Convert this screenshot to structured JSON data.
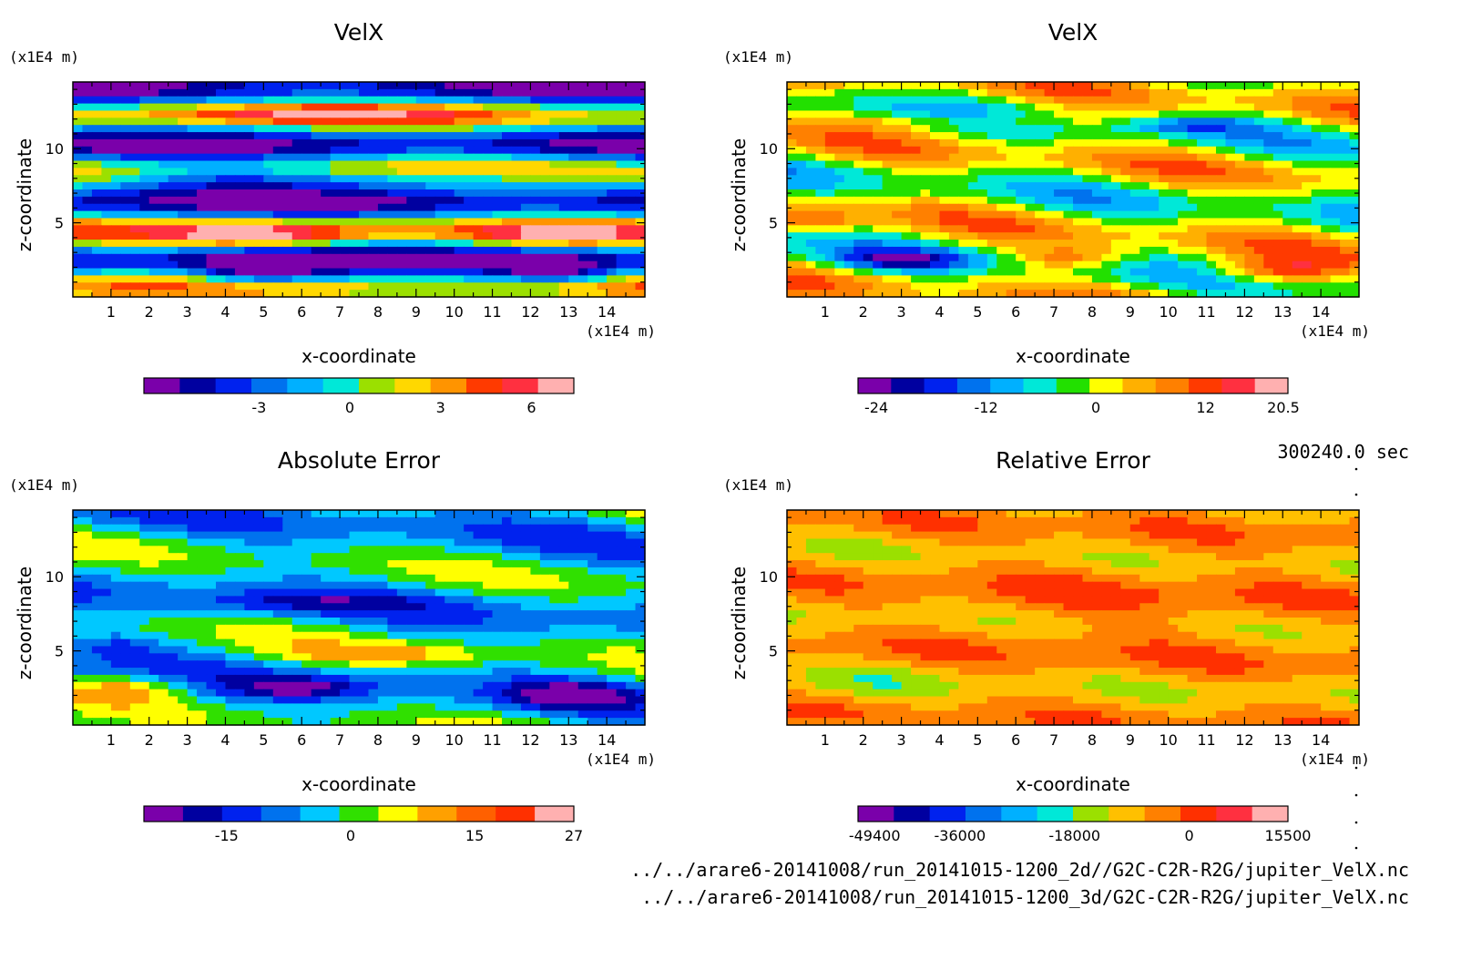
{
  "footer": {
    "time": "300240.0 sec",
    "file1": "../../arare6-20141008/run_20141015-1200_2d//G2C-C2R-R2G/jupiter_VelX.nc",
    "file2": "../../arare6-20141008/run_20141015-1200_3d/G2C-C2R-R2G/jupiter_VelX.nc"
  },
  "chart_data": [
    {
      "type": "heatmap",
      "title": "VelX",
      "xlabel": "x-coordinate",
      "ylabel": "z-coordinate",
      "x_unit": "(x1E4 m)",
      "z_unit": "(x1E4 m)",
      "xlim": [
        0,
        15
      ],
      "ylim": [
        0,
        14.5
      ],
      "x_ticks": [
        "1",
        "2",
        "3",
        "4",
        "5",
        "6",
        "7",
        "8",
        "9",
        "10",
        "11",
        "12",
        "13",
        "14"
      ],
      "y_ticks": [
        "5",
        "10"
      ],
      "colorbar": {
        "labels": [
          "-3",
          "0",
          "3",
          "6"
        ],
        "label_values": [
          -3,
          0,
          3,
          6
        ],
        "range": [
          -6.8,
          7.4
        ]
      },
      "colors": [
        "#7a00aa",
        "#0000a0",
        "#0022ee",
        "#0072ee",
        "#00b0ff",
        "#00e8d8",
        "#9be000",
        "#ffd800",
        "#ff9400",
        "#ff3a00",
        "#ff3040",
        "#ffb0b0"
      ]
    },
    {
      "type": "heatmap",
      "title": "VelX",
      "xlabel": "x-coordinate",
      "ylabel": "z-coordinate",
      "x_unit": "(x1E4 m)",
      "z_unit": "(x1E4 m)",
      "xlim": [
        0,
        15
      ],
      "ylim": [
        0,
        14.5
      ],
      "x_ticks": [
        "1",
        "2",
        "3",
        "4",
        "5",
        "6",
        "7",
        "8",
        "9",
        "10",
        "11",
        "12",
        "13",
        "14"
      ],
      "y_ticks": [
        "5",
        "10"
      ],
      "colorbar": {
        "labels": [
          "-24",
          "-12",
          "0",
          "12",
          "20.5"
        ],
        "label_values": [
          -24,
          -12,
          0,
          12,
          20.5
        ],
        "range": [
          -26,
          21
        ]
      },
      "colors": [
        "#7a00aa",
        "#0000a0",
        "#0022ee",
        "#0072ee",
        "#00b0ff",
        "#00e8d8",
        "#22e000",
        "#ffff00",
        "#ffb000",
        "#ff8000",
        "#ff3a00",
        "#ff3040",
        "#ffb0b0"
      ]
    },
    {
      "type": "heatmap",
      "title": "Absolute Error",
      "xlabel": "x-coordinate",
      "ylabel": "z-coordinate",
      "x_unit": "(x1E4 m)",
      "z_unit": "(x1E4 m)",
      "xlim": [
        0,
        15
      ],
      "ylim": [
        0,
        14.5
      ],
      "x_ticks": [
        "1",
        "2",
        "3",
        "4",
        "5",
        "6",
        "7",
        "8",
        "9",
        "10",
        "11",
        "12",
        "13",
        "14"
      ],
      "y_ticks": [
        "5",
        "10"
      ],
      "colorbar": {
        "labels": [
          "-15",
          "0",
          "15",
          "27"
        ],
        "label_values": [
          -15,
          0,
          15,
          27
        ],
        "range": [
          -25,
          27
        ]
      },
      "colors": [
        "#7a00aa",
        "#0000a0",
        "#0022ee",
        "#0072ee",
        "#00c8ff",
        "#30e000",
        "#ffff00",
        "#ffa000",
        "#ff6000",
        "#ff3000",
        "#ffb0b0"
      ]
    },
    {
      "type": "heatmap",
      "title": "Relative Error",
      "xlabel": "x-coordinate",
      "ylabel": "z-coordinate",
      "x_unit": "(x1E4 m)",
      "z_unit": "(x1E4 m)",
      "xlim": [
        0,
        15
      ],
      "ylim": [
        0,
        14.5
      ],
      "x_ticks": [
        "1",
        "2",
        "3",
        "4",
        "5",
        "6",
        "7",
        "8",
        "9",
        "10",
        "11",
        "12",
        "13",
        "14"
      ],
      "y_ticks": [
        "5",
        "10"
      ],
      "colorbar": {
        "labels": [
          "-49400",
          "-36000",
          "-18000",
          "0",
          "15500"
        ],
        "label_values": [
          -49400,
          -36000,
          -18000,
          0,
          15500
        ],
        "range": [
          -52000,
          15500
        ]
      },
      "colors": [
        "#7a00aa",
        "#0000a0",
        "#0022ee",
        "#0072ee",
        "#00b0ff",
        "#00e8d8",
        "#9be000",
        "#ffc000",
        "#ff8000",
        "#ff3000",
        "#ff3040",
        "#ffb0b0"
      ]
    }
  ]
}
